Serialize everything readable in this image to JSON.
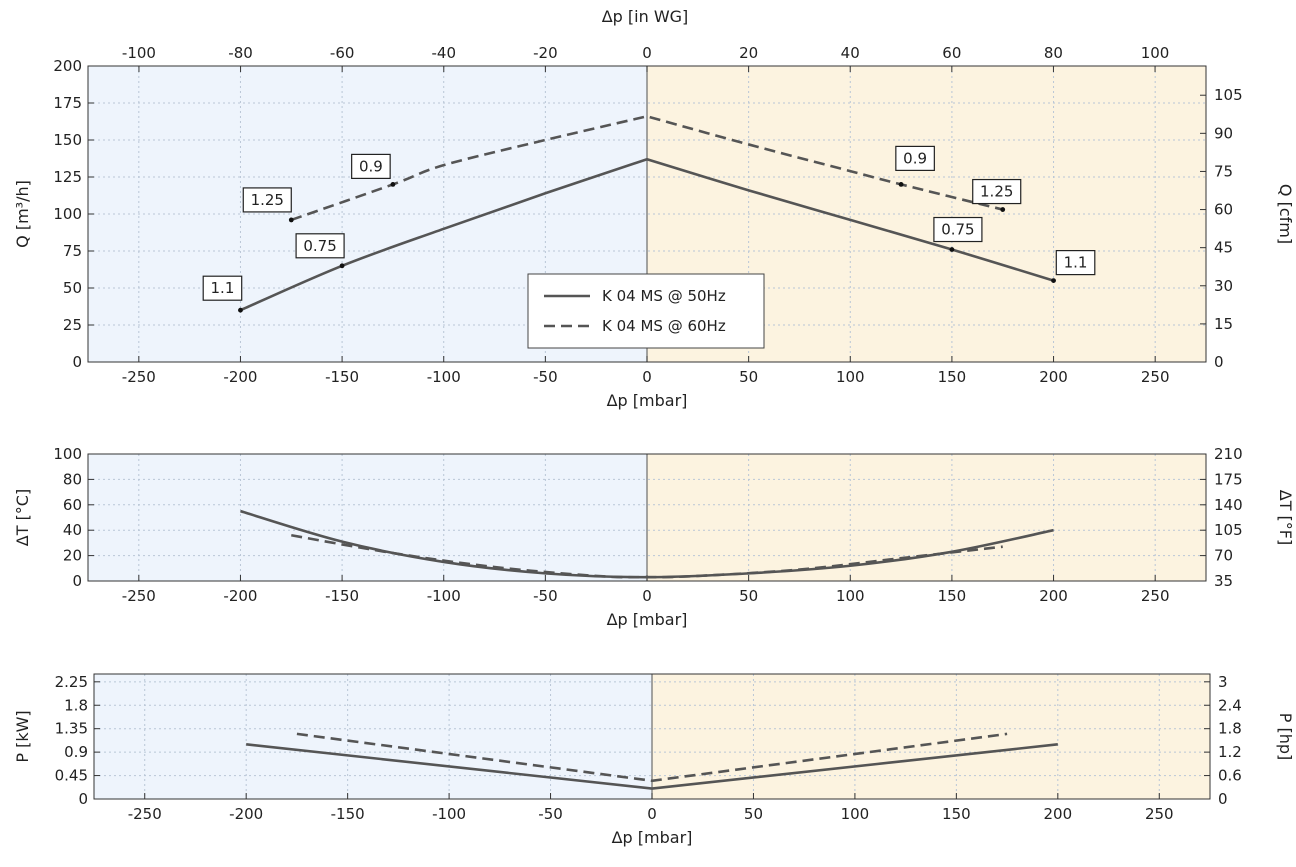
{
  "chart_data": [
    {
      "id": "flow",
      "type": "line",
      "xlabel": "Δp [mbar]",
      "ylabel": "Q [m³/h]",
      "ylabel_right": "Q [cfm]",
      "xlabel_top": "Δp [in WG]",
      "xlim": [
        -275,
        275
      ],
      "ylim": [
        0,
        200
      ],
      "xticks": [
        -250,
        -200,
        -150,
        -100,
        -50,
        0,
        50,
        100,
        150,
        200,
        250
      ],
      "yticks": [
        0,
        25,
        50,
        75,
        100,
        125,
        150,
        175,
        200
      ],
      "yticks_right": [
        0,
        15,
        30,
        45,
        60,
        75,
        90,
        105
      ],
      "xticks_top": [
        -100,
        -80,
        -60,
        -40,
        -20,
        0,
        20,
        40,
        60,
        80,
        100
      ],
      "grid": true,
      "series": [
        {
          "name": "K 04 MS @ 50Hz",
          "style": "solid",
          "x": [
            -200,
            -150,
            -100,
            -50,
            0,
            50,
            100,
            150,
            200
          ],
          "y": [
            35,
            65,
            90,
            114,
            137,
            116,
            96,
            76,
            55
          ]
        },
        {
          "name": "K 04 MS @ 60Hz",
          "style": "dashed",
          "x": [
            -175,
            -125,
            -100,
            -50,
            0,
            50,
            100,
            125,
            175
          ],
          "y": [
            96,
            120,
            133,
            150,
            166,
            147,
            129,
            120,
            103
          ]
        }
      ],
      "annotations": [
        {
          "text": "1.1",
          "x": -200,
          "y": 35
        },
        {
          "text": "0.75",
          "x": -150,
          "y": 65
        },
        {
          "text": "1.25",
          "x": -175,
          "y": 96
        },
        {
          "text": "0.9",
          "x": -125,
          "y": 120
        },
        {
          "text": "0.9",
          "x": 125,
          "y": 120
        },
        {
          "text": "1.25",
          "x": 175,
          "y": 103
        },
        {
          "text": "0.75",
          "x": 150,
          "y": 76
        },
        {
          "text": "1.1",
          "x": 200,
          "y": 55
        }
      ],
      "legend": {
        "placement": "center",
        "entries": [
          "K 04 MS @ 50Hz",
          "K 04 MS @ 60Hz"
        ]
      }
    },
    {
      "id": "temperature",
      "type": "line",
      "xlabel": "Δp [mbar]",
      "ylabel": "ΔT [°C]",
      "ylabel_right": "ΔT [°F]",
      "xlim": [
        -275,
        275
      ],
      "ylim": [
        0,
        100
      ],
      "xticks": [
        -250,
        -200,
        -150,
        -100,
        -50,
        0,
        50,
        100,
        150,
        200,
        250
      ],
      "yticks": [
        0,
        20,
        40,
        60,
        80,
        100
      ],
      "yticks_right": [
        35,
        70,
        105,
        140,
        175,
        210
      ],
      "grid": true,
      "series": [
        {
          "name": "K 04 MS @ 50Hz",
          "style": "solid",
          "x": [
            -200,
            -150,
            -100,
            -50,
            0,
            50,
            100,
            150,
            200
          ],
          "y": [
            55,
            31,
            15,
            6,
            3,
            6,
            12,
            23,
            40
          ]
        },
        {
          "name": "K 04 MS @ 60Hz",
          "style": "dashed",
          "x": [
            -175,
            -125,
            -75,
            -25,
            0,
            25,
            75,
            125,
            175
          ],
          "y": [
            36,
            22,
            11,
            4,
            3,
            4,
            9,
            18,
            27
          ]
        }
      ]
    },
    {
      "id": "power",
      "type": "line",
      "xlabel": "Δp [mbar]",
      "ylabel": "P [kW]",
      "ylabel_right": "P [hp]",
      "xlim": [
        -275,
        275
      ],
      "ylim": [
        0,
        2.4
      ],
      "xticks": [
        -250,
        -200,
        -150,
        -100,
        -50,
        0,
        50,
        100,
        150,
        200,
        250
      ],
      "yticks": [
        0,
        0.45,
        0.9,
        1.35,
        1.8,
        2.25
      ],
      "yticks_right": [
        0,
        0.6,
        1.2,
        1.8,
        2.4,
        3
      ],
      "grid": true,
      "series": [
        {
          "name": "K 04 MS @ 50Hz",
          "style": "solid",
          "x": [
            -200,
            0,
            200
          ],
          "y": [
            1.05,
            0.2,
            1.05
          ]
        },
        {
          "name": "K 04 MS @ 60Hz",
          "style": "dashed",
          "x": [
            -175,
            0,
            175
          ],
          "y": [
            1.25,
            0.35,
            1.25
          ]
        }
      ]
    }
  ],
  "colors": {
    "left_region": "#eef4fc",
    "right_region": "#fcf3e0",
    "line": "#555555"
  }
}
